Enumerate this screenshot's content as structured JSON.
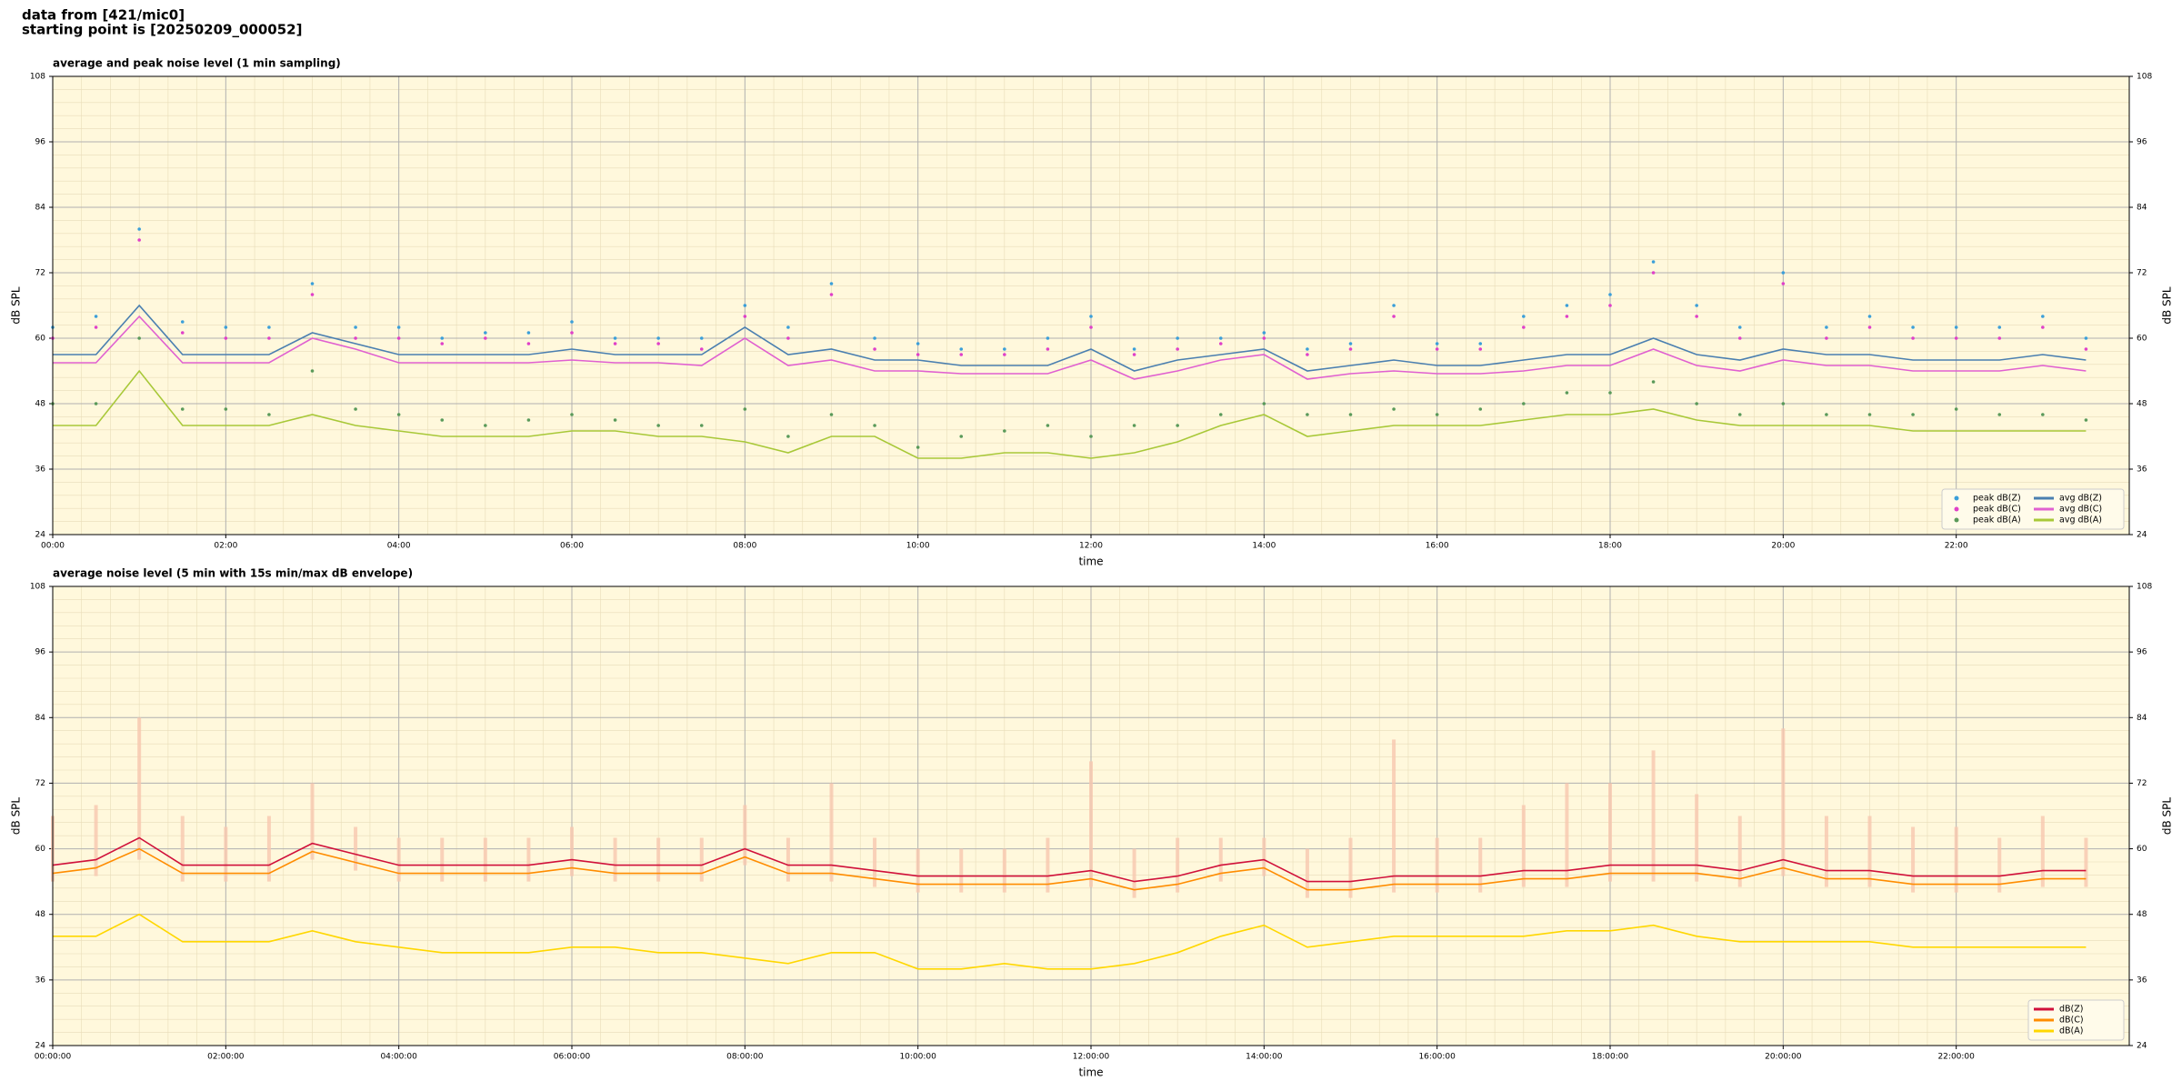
{
  "header": {
    "lines": [
      "data from [421/mic0]",
      "starting point is [20250209_000052]"
    ]
  },
  "chart_data": [
    {
      "type": "line",
      "title": "average and peak noise level (1 min sampling)",
      "xlabel": "time",
      "ylabel": "dB SPL",
      "x": [
        0,
        0.5,
        1,
        1.5,
        2,
        2.5,
        3,
        3.5,
        4,
        4.5,
        5,
        5.5,
        6,
        6.5,
        7,
        7.5,
        8,
        8.5,
        9,
        9.5,
        10,
        10.5,
        11,
        11.5,
        12,
        12.5,
        13,
        13.5,
        14,
        14.5,
        15,
        15.5,
        16,
        16.5,
        17,
        17.5,
        18,
        18.5,
        19,
        19.5,
        20,
        20.5,
        21,
        21.5,
        22,
        22.5,
        23,
        23.5
      ],
      "xlim": [
        0,
        24
      ],
      "xticks": [
        {
          "value": 0,
          "label": "00:00"
        },
        {
          "value": 2,
          "label": "02:00"
        },
        {
          "value": 4,
          "label": "04:00"
        },
        {
          "value": 6,
          "label": "06:00"
        },
        {
          "value": 8,
          "label": "08:00"
        },
        {
          "value": 10,
          "label": "10:00"
        },
        {
          "value": 12,
          "label": "12:00"
        },
        {
          "value": 14,
          "label": "14:00"
        },
        {
          "value": 16,
          "label": "16:00"
        },
        {
          "value": 18,
          "label": "18:00"
        },
        {
          "value": 20,
          "label": "20:00"
        },
        {
          "value": 22,
          "label": "22:00"
        }
      ],
      "ylim": [
        24,
        108
      ],
      "yticks": [
        24,
        36,
        48,
        60,
        72,
        84,
        96,
        108
      ],
      "grid": true,
      "legend": "lower right",
      "legend_columns": 2,
      "series": [
        {
          "name": "peak dB(Z)",
          "marker": true,
          "color": "#3b9fd9",
          "values": [
            62,
            64,
            80,
            63,
            62,
            62,
            70,
            62,
            62,
            60,
            61,
            61,
            63,
            60,
            60,
            60,
            66,
            62,
            70,
            60,
            59,
            58,
            58,
            60,
            64,
            58,
            60,
            60,
            61,
            58,
            59,
            66,
            59,
            59,
            64,
            66,
            68,
            74,
            66,
            62,
            72,
            62,
            64,
            62,
            62,
            62,
            64,
            60
          ]
        },
        {
          "name": "peak dB(C)",
          "marker": true,
          "color": "#e040c8",
          "values": [
            60,
            62,
            78,
            61,
            60,
            60,
            68,
            60,
            60,
            59,
            60,
            59,
            61,
            59,
            59,
            58,
            64,
            60,
            68,
            58,
            57,
            57,
            57,
            58,
            62,
            57,
            58,
            59,
            60,
            57,
            58,
            64,
            58,
            58,
            62,
            64,
            66,
            72,
            64,
            60,
            70,
            60,
            62,
            60,
            60,
            60,
            62,
            58
          ]
        },
        {
          "name": "peak dB(A)",
          "marker": true,
          "color": "#5a9a5a",
          "values": [
            48,
            48,
            60,
            47,
            47,
            46,
            54,
            47,
            46,
            45,
            44,
            45,
            46,
            45,
            44,
            44,
            47,
            42,
            46,
            44,
            40,
            42,
            43,
            44,
            42,
            44,
            44,
            46,
            48,
            46,
            46,
            47,
            46,
            47,
            48,
            50,
            50,
            52,
            48,
            46,
            48,
            46,
            46,
            46,
            47,
            46,
            46,
            45
          ]
        },
        {
          "name": "avg dB(Z)",
          "marker": false,
          "color": "#4a7fb0",
          "values": [
            57,
            57,
            66,
            57,
            57,
            57,
            61,
            59,
            57,
            57,
            57,
            57,
            58,
            57,
            57,
            57,
            62,
            57,
            58,
            56,
            56,
            55,
            55,
            55,
            58,
            54,
            56,
            57,
            58,
            54,
            55,
            56,
            55,
            55,
            56,
            57,
            57,
            60,
            57,
            56,
            58,
            57,
            57,
            56,
            56,
            56,
            57,
            56
          ]
        },
        {
          "name": "avg dB(C)",
          "marker": false,
          "color": "#e060d0",
          "values": [
            55.5,
            55.5,
            64,
            55.5,
            55.5,
            55.5,
            60,
            58,
            55.5,
            55.5,
            55.5,
            55.5,
            56,
            55.5,
            55.5,
            55,
            60,
            55,
            56,
            54,
            54,
            53.5,
            53.5,
            53.5,
            56,
            52.5,
            54,
            56,
            57,
            52.5,
            53.5,
            54,
            53.5,
            53.5,
            54,
            55,
            55,
            58,
            55,
            54,
            56,
            55,
            55,
            54,
            54,
            54,
            55,
            54
          ]
        },
        {
          "name": "avg dB(A)",
          "marker": false,
          "color": "#a8c838",
          "values": [
            44,
            44,
            54,
            44,
            44,
            44,
            46,
            44,
            43,
            42,
            42,
            42,
            43,
            43,
            42,
            42,
            41,
            39,
            42,
            42,
            38,
            38,
            39,
            39,
            38,
            39,
            41,
            44,
            46,
            42,
            43,
            44,
            44,
            44,
            45,
            46,
            46,
            47,
            45,
            44,
            44,
            44,
            44,
            43,
            43,
            43,
            43,
            43
          ]
        }
      ]
    },
    {
      "type": "line",
      "title": "average noise level (5 min with 15s min/max dB envelope)",
      "xlabel": "time",
      "ylabel": "dB SPL",
      "x": [
        0,
        0.5,
        1,
        1.5,
        2,
        2.5,
        3,
        3.5,
        4,
        4.5,
        5,
        5.5,
        6,
        6.5,
        7,
        7.5,
        8,
        8.5,
        9,
        9.5,
        10,
        10.5,
        11,
        11.5,
        12,
        12.5,
        13,
        13.5,
        14,
        14.5,
        15,
        15.5,
        16,
        16.5,
        17,
        17.5,
        18,
        18.5,
        19,
        19.5,
        20,
        20.5,
        21,
        21.5,
        22,
        22.5,
        23,
        23.5
      ],
      "xlim": [
        0,
        24
      ],
      "xticks": [
        {
          "value": 0,
          "label": "00:00:00"
        },
        {
          "value": 2,
          "label": "02:00:00"
        },
        {
          "value": 4,
          "label": "04:00:00"
        },
        {
          "value": 6,
          "label": "06:00:00"
        },
        {
          "value": 8,
          "label": "08:00:00"
        },
        {
          "value": 10,
          "label": "10:00:00"
        },
        {
          "value": 12,
          "label": "12:00:00"
        },
        {
          "value": 14,
          "label": "14:00:00"
        },
        {
          "value": 16,
          "label": "16:00:00"
        },
        {
          "value": 18,
          "label": "18:00:00"
        },
        {
          "value": 20,
          "label": "20:00:00"
        },
        {
          "value": 22,
          "label": "22:00:00"
        }
      ],
      "ylim": [
        24,
        108
      ],
      "yticks": [
        24,
        36,
        48,
        60,
        72,
        84,
        96,
        108
      ],
      "grid": true,
      "legend": "lower right",
      "legend_columns": 1,
      "envelope": {
        "color": "#f8c8b0",
        "max": [
          66,
          68,
          84,
          66,
          64,
          66,
          72,
          64,
          62,
          62,
          62,
          62,
          64,
          62,
          62,
          62,
          68,
          62,
          72,
          62,
          60,
          60,
          60,
          62,
          76,
          60,
          62,
          62,
          62,
          60,
          62,
          80,
          62,
          62,
          68,
          72,
          72,
          78,
          70,
          66,
          82,
          66,
          66,
          64,
          64,
          62,
          66,
          62
        ],
        "min": [
          54,
          55,
          58,
          54,
          54,
          54,
          58,
          56,
          54,
          54,
          54,
          54,
          55,
          54,
          54,
          54,
          57,
          54,
          54,
          53,
          52,
          52,
          52,
          52,
          53,
          51,
          52,
          54,
          55,
          51,
          51,
          52,
          52,
          52,
          53,
          53,
          54,
          54,
          54,
          53,
          55,
          53,
          53,
          52,
          52,
          52,
          53,
          53
        ]
      },
      "series": [
        {
          "name": "dB(Z)",
          "marker": false,
          "color": "#d0103a",
          "values": [
            57,
            58,
            62,
            57,
            57,
            57,
            61,
            59,
            57,
            57,
            57,
            57,
            58,
            57,
            57,
            57,
            60,
            57,
            57,
            56,
            55,
            55,
            55,
            55,
            56,
            54,
            55,
            57,
            58,
            54,
            54,
            55,
            55,
            55,
            56,
            56,
            57,
            57,
            57,
            56,
            58,
            56,
            56,
            55,
            55,
            55,
            56,
            56
          ]
        },
        {
          "name": "dB(C)",
          "marker": false,
          "color": "#ff8c00",
          "values": [
            55.5,
            56.5,
            60,
            55.5,
            55.5,
            55.5,
            59.5,
            57.5,
            55.5,
            55.5,
            55.5,
            55.5,
            56.5,
            55.5,
            55.5,
            55.5,
            58.5,
            55.5,
            55.5,
            54.5,
            53.5,
            53.5,
            53.5,
            53.5,
            54.5,
            52.5,
            53.5,
            55.5,
            56.5,
            52.5,
            52.5,
            53.5,
            53.5,
            53.5,
            54.5,
            54.5,
            55.5,
            55.5,
            55.5,
            54.5,
            56.5,
            54.5,
            54.5,
            53.5,
            53.5,
            53.5,
            54.5,
            54.5
          ]
        },
        {
          "name": "dB(A)",
          "marker": false,
          "color": "#ffd700",
          "values": [
            44,
            44,
            48,
            43,
            43,
            43,
            45,
            43,
            42,
            41,
            41,
            41,
            42,
            42,
            41,
            41,
            40,
            39,
            41,
            41,
            38,
            38,
            39,
            38,
            38,
            39,
            41,
            44,
            46,
            42,
            43,
            44,
            44,
            44,
            44,
            45,
            45,
            46,
            44,
            43,
            43,
            43,
            43,
            42,
            42,
            42,
            42,
            42
          ]
        }
      ]
    }
  ]
}
